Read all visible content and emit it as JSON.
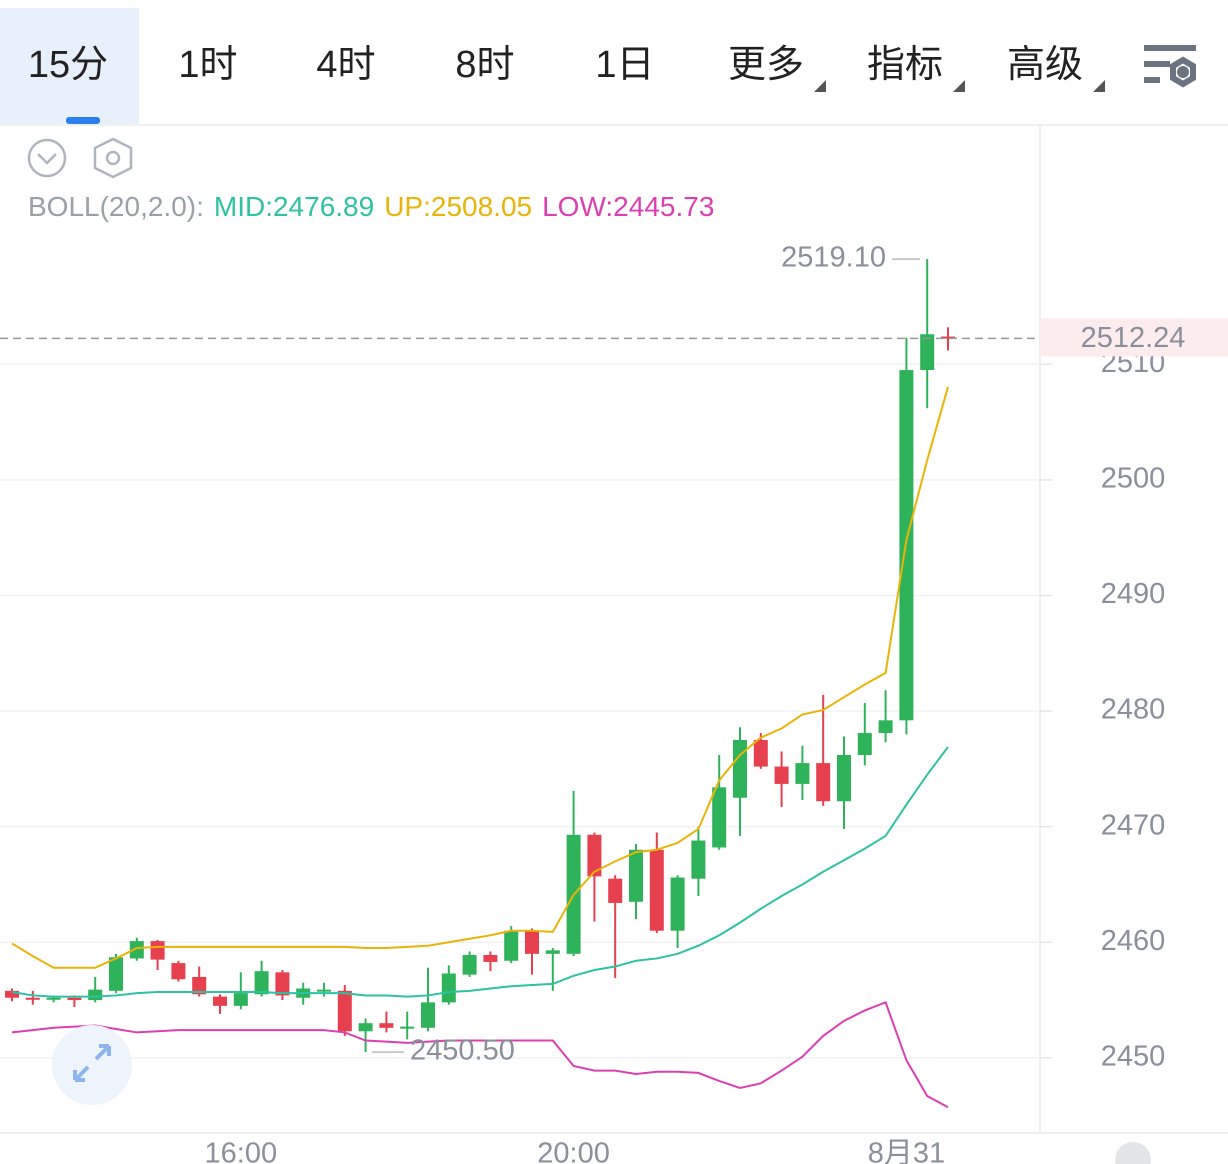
{
  "toolbar": {
    "tabs": [
      "15分",
      "1时",
      "4时",
      "8时",
      "1日",
      "更多",
      "指标",
      "高级"
    ],
    "active": 0
  },
  "chart_data": {
    "type": "candlestick",
    "indicator": "BOLL(20,2.0):",
    "categories": [
      null,
      null,
      null,
      null,
      null,
      null,
      null,
      null,
      null,
      null,
      null,
      "16:00",
      null,
      null,
      null,
      null,
      null,
      null,
      null,
      null,
      null,
      null,
      null,
      null,
      null,
      null,
      null,
      "20:00",
      null,
      null,
      null,
      null,
      null,
      null,
      null,
      null,
      null,
      null,
      null,
      null,
      null,
      null,
      null,
      "8月31",
      null,
      null
    ],
    "open": [
      2455.8,
      2455.2,
      2455.1,
      2455.2,
      2455.0,
      2455.8,
      2458.6,
      2460.1,
      2458.2,
      2457.0,
      2455.3,
      2454.5,
      2455.5,
      2457.4,
      2455.2,
      2455.8,
      2455.8,
      2452.3,
      2453.0,
      2452.6,
      2452.6,
      2454.8,
      2457.2,
      2458.9,
      2458.4,
      2461.0,
      2459.0,
      2459.0,
      2469.3,
      2465.5,
      2463.5,
      2468.0,
      2461.0,
      2465.5,
      2468.2,
      2472.5,
      2477.5,
      2475.2,
      2473.7,
      2475.5,
      2472.2,
      2476.2,
      2478.1,
      2479.2,
      2509.5,
      2512.4
    ],
    "high": [
      2456.0,
      2455.8,
      2455.4,
      2455.4,
      2457.0,
      2459.0,
      2460.4,
      2460.2,
      2458.4,
      2457.9,
      2455.5,
      2457.4,
      2458.4,
      2457.6,
      2456.5,
      2456.5,
      2456.3,
      2453.4,
      2454.0,
      2454.0,
      2457.8,
      2458.0,
      2459.2,
      2459.2,
      2461.4,
      2461.2,
      2459.5,
      2473.1,
      2469.5,
      2465.8,
      2468.5,
      2469.5,
      2465.8,
      2470.0,
      2476.2,
      2478.6,
      2478.1,
      2476.5,
      2477.0,
      2481.4,
      2477.8,
      2480.7,
      2481.8,
      2512.3,
      2519.1,
      2513.2
    ],
    "low": [
      2454.9,
      2454.6,
      2454.8,
      2454.4,
      2454.8,
      2455.6,
      2458.4,
      2457.6,
      2456.6,
      2455.3,
      2453.8,
      2454.2,
      2455.3,
      2455.0,
      2454.6,
      2455.3,
      2451.9,
      2450.5,
      2452.2,
      2451.6,
      2452.3,
      2454.6,
      2457.0,
      2457.5,
      2458.2,
      2457.2,
      2455.8,
      2458.8,
      2461.8,
      2456.9,
      2462.0,
      2460.8,
      2459.5,
      2464.0,
      2468.0,
      2469.2,
      2475.0,
      2471.7,
      2472.3,
      2471.8,
      2469.8,
      2475.3,
      2477.3,
      2478.0,
      2506.2,
      2511.2
    ],
    "close": [
      2455.2,
      2455.1,
      2455.2,
      2455.0,
      2455.9,
      2458.7,
      2460.1,
      2458.5,
      2456.8,
      2455.5,
      2454.5,
      2455.6,
      2457.5,
      2455.4,
      2456.0,
      2455.9,
      2452.3,
      2453.0,
      2452.6,
      2452.7,
      2454.8,
      2457.3,
      2458.9,
      2458.3,
      2461.0,
      2459.0,
      2459.3,
      2469.3,
      2465.7,
      2463.4,
      2468.0,
      2461.0,
      2465.6,
      2468.8,
      2473.4,
      2477.5,
      2475.2,
      2473.7,
      2475.5,
      2472.2,
      2476.2,
      2478.1,
      2479.2,
      2509.5,
      2512.6,
      2512.24
    ],
    "up_color": "#2fb35a",
    "down_color": "#e6404f",
    "series": [
      {
        "name": "MID:",
        "color": "#2dc2a3",
        "values": [
          2455.7,
          2455.4,
          2455.3,
          2455.3,
          2455.3,
          2455.4,
          2455.6,
          2455.7,
          2455.7,
          2455.7,
          2455.7,
          2455.7,
          2455.7,
          2455.6,
          2455.6,
          2455.6,
          2455.6,
          2455.4,
          2455.4,
          2455.3,
          2455.4,
          2455.7,
          2455.8,
          2456.0,
          2456.2,
          2456.3,
          2456.4,
          2457.1,
          2457.6,
          2457.9,
          2458.4,
          2458.6,
          2459.0,
          2459.7,
          2460.6,
          2461.7,
          2462.9,
          2464.0,
          2465.0,
          2466.1,
          2467.1,
          2468.1,
          2469.2,
          2471.9,
          2474.5,
          2476.89
        ]
      },
      {
        "name": "UP:",
        "color": "#eab308",
        "values": [
          2459.9,
          2458.8,
          2457.8,
          2457.8,
          2457.8,
          2458.6,
          2459.5,
          2459.6,
          2459.6,
          2459.6,
          2459.6,
          2459.6,
          2459.6,
          2459.6,
          2459.6,
          2459.6,
          2459.6,
          2459.5,
          2459.5,
          2459.6,
          2459.7,
          2460.0,
          2460.3,
          2460.6,
          2461.0,
          2461.0,
          2460.9,
          2464.1,
          2466.1,
          2467.0,
          2467.8,
          2468.0,
          2468.6,
          2469.8,
          2474.0,
          2476.2,
          2477.7,
          2478.5,
          2479.7,
          2480.1,
          2481.2,
          2482.3,
          2483.3,
          2494.8,
          2501.7,
          2508.05
        ]
      },
      {
        "name": "LOW:",
        "color": "#dd3fb2",
        "values": [
          2452.2,
          2452.4,
          2452.6,
          2452.7,
          2452.8,
          2452.5,
          2452.2,
          2452.3,
          2452.4,
          2452.4,
          2452.4,
          2452.4,
          2452.4,
          2452.4,
          2452.4,
          2452.4,
          2452.2,
          2451.5,
          2451.4,
          2451.3,
          2451.4,
          2451.5,
          2451.5,
          2451.5,
          2451.5,
          2451.5,
          2451.5,
          2449.3,
          2448.9,
          2448.9,
          2448.6,
          2448.8,
          2448.8,
          2448.7,
          2448.0,
          2447.4,
          2447.8,
          2448.9,
          2450.1,
          2451.9,
          2453.2,
          2454.1,
          2454.8,
          2449.8,
          2446.7,
          2445.73
        ]
      }
    ],
    "ylim": [
      2443.5,
      2530.7
    ],
    "yticks": [
      2450,
      2460,
      2470,
      2480,
      2490,
      2500,
      2510
    ],
    "grid": true,
    "annotations": {
      "high": {
        "value": 2519.1,
        "label": "2519.10"
      },
      "low": {
        "value": 2450.5,
        "label": "2450.50"
      },
      "last": 2512.24
    }
  }
}
